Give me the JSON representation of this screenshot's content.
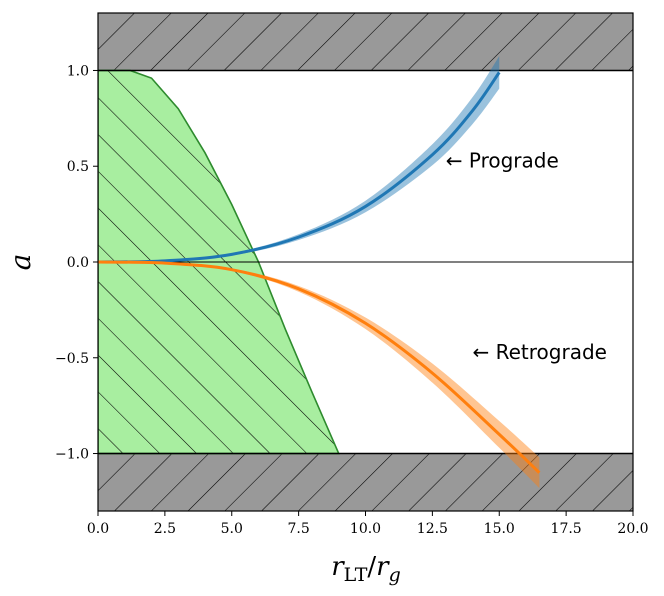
{
  "chart_data": {
    "type": "line",
    "xlabel": "r_LT / r_g",
    "ylabel": "a",
    "xlim": [
      0,
      20
    ],
    "ylim": [
      -1.3,
      1.3
    ],
    "xticks": [
      0.0,
      2.5,
      5.0,
      7.5,
      10.0,
      12.5,
      15.0,
      17.5,
      20.0
    ],
    "xtick_labels": [
      "0.0",
      "2.5",
      "5.0",
      "7.5",
      "10.0",
      "12.5",
      "15.0",
      "17.5",
      "20.0"
    ],
    "yticks": [
      -1.0,
      -0.5,
      0.0,
      0.5,
      1.0
    ],
    "ytick_labels": [
      "−1.0",
      "−0.5",
      "0.0",
      "0.5",
      "1.0"
    ],
    "grid": false,
    "series": [
      {
        "color": "#1f77b4",
        "x": [
          0,
          2.5,
          5.0,
          7.5,
          10.0,
          12.5,
          14.0,
          15.0
        ],
        "y": [
          0.0,
          0.006,
          0.04,
          0.13,
          0.29,
          0.56,
          0.79,
          0.99
        ],
        "band_half_width": [
          0.0,
          0.002,
          0.006,
          0.015,
          0.03,
          0.055,
          0.07,
          0.085
        ]
      },
      {
        "color": "#ff7f0e",
        "x": [
          0,
          2.5,
          5.0,
          7.5,
          10.0,
          12.5,
          15.0,
          16.5
        ],
        "y": [
          0.0,
          -0.006,
          -0.04,
          -0.14,
          -0.32,
          -0.58,
          -0.9,
          -1.1
        ],
        "band_half_width": [
          0.0,
          0.002,
          0.006,
          0.015,
          0.03,
          0.05,
          0.07,
          0.08
        ]
      }
    ],
    "shaded_regions": [
      {
        "color": "#999999",
        "y_range": [
          1.0,
          1.3
        ],
        "hatch": true
      },
      {
        "color": "#999999",
        "y_range": [
          -1.3,
          -1.0
        ],
        "hatch": true
      },
      {
        "color": "#a8eea0",
        "edge_color": "#2e8b2e",
        "hatch": true,
        "boundary_x": [
          0,
          1.2,
          2.0,
          3.0,
          4.0,
          5.0,
          6.0,
          7.0,
          8.0,
          9.0
        ],
        "boundary_y": [
          1.0,
          1.0,
          0.96,
          0.8,
          0.57,
          0.3,
          0.0,
          -0.35,
          -0.68,
          -1.0
        ]
      }
    ],
    "hlines": [
      0.0
    ],
    "annotations": [
      {
        "text": "← Prograde",
        "x": 13.0,
        "y": 0.53
      },
      {
        "text": "← Retrograde",
        "x": 14.0,
        "y": -0.47
      }
    ]
  }
}
